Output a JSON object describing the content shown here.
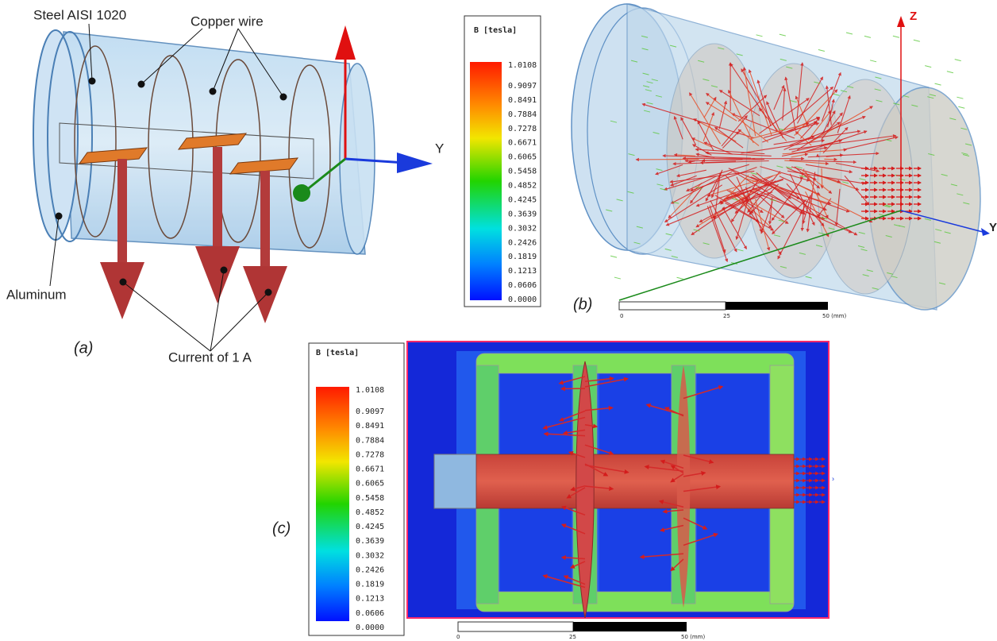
{
  "panel_a": {
    "label": "(a)",
    "annotations": {
      "steel": "Steel AISI 1020",
      "copper": "Copper wire",
      "aluminum": "Aluminum",
      "current": "Current of 1 A"
    },
    "axis": "Y"
  },
  "panel_b": {
    "label": "(b)",
    "legend": {
      "title": "B [tesla]",
      "ticks": [
        "1.0108",
        "0.9097",
        "0.8491",
        "0.7884",
        "0.7278",
        "0.6671",
        "0.6065",
        "0.5458",
        "0.4852",
        "0.4245",
        "0.3639",
        "0.3032",
        "0.2426",
        "0.1819",
        "0.1213",
        "0.0606",
        "0.0000"
      ]
    },
    "axes": {
      "z": "Z",
      "y": "Y"
    },
    "scale": [
      "0",
      "25",
      "50 (mm)"
    ]
  },
  "panel_c": {
    "label": "(c)",
    "legend": {
      "title": "B [tesla]",
      "ticks": [
        "1.0108",
        "0.9097",
        "0.8491",
        "0.7884",
        "0.7278",
        "0.6671",
        "0.6065",
        "0.5458",
        "0.4852",
        "0.4245",
        "0.3639",
        "0.3032",
        "0.2426",
        "0.1819",
        "0.1213",
        "0.0606",
        "0.0000"
      ]
    },
    "scale": [
      "0",
      "25",
      "50 (mm)"
    ]
  }
}
